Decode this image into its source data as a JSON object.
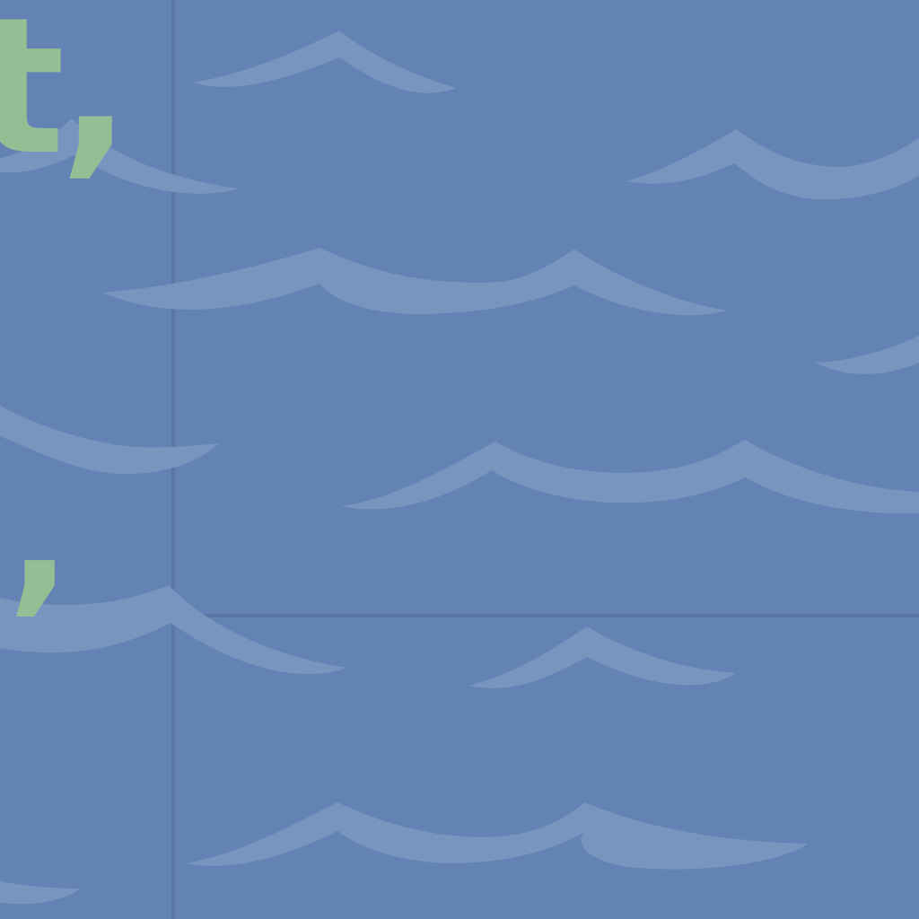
{
  "colors": {
    "background": "#6283b4",
    "wave": "#7895c0",
    "grid_line": "#5a78a6",
    "text_accent": "#94bf94"
  },
  "text": {
    "fragment_top": "t,",
    "fragment_mid": ","
  }
}
